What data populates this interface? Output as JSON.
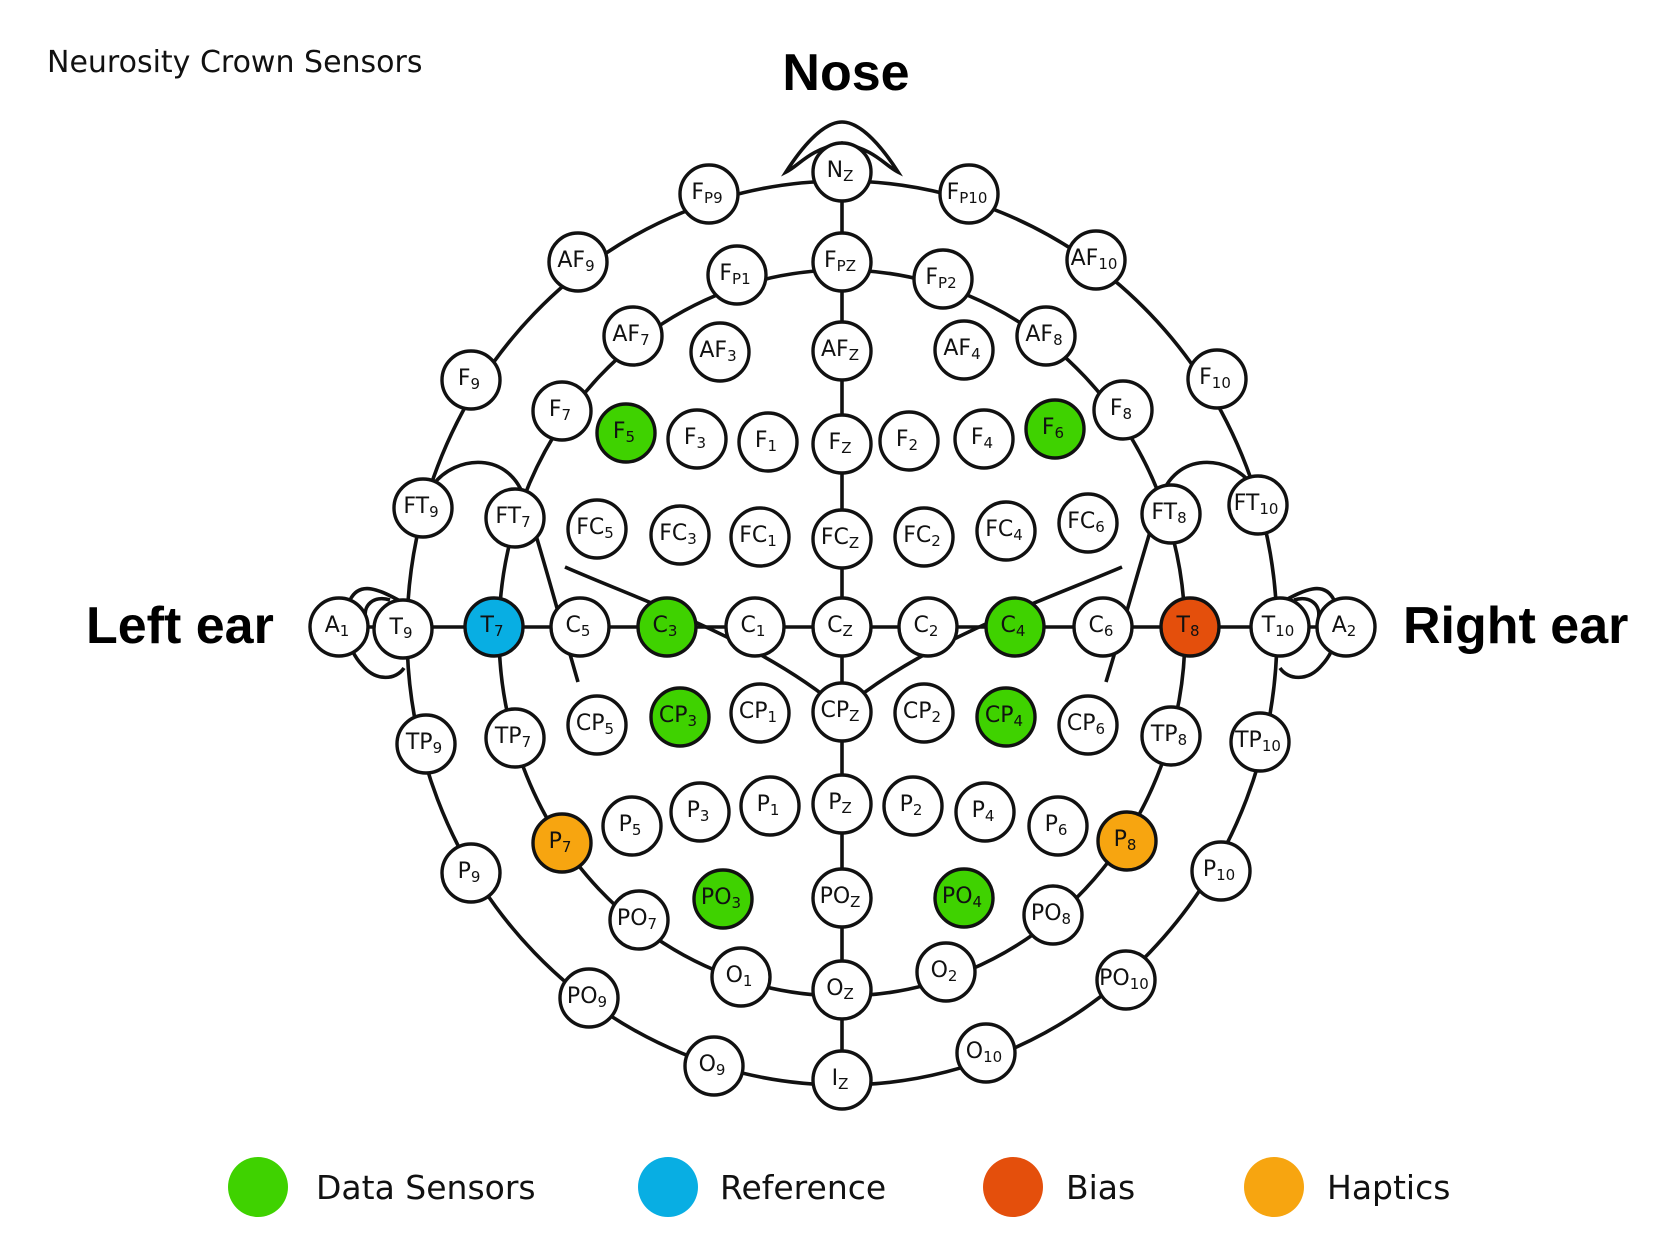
{
  "title": "Neurosity Crown Sensors",
  "orientation": {
    "top": "Nose",
    "left": "Left ear",
    "right": "Right ear"
  },
  "legend": [
    {
      "key": "data",
      "label": "Data Sensors",
      "color": "#3fd200"
    },
    {
      "key": "reference",
      "label": "Reference",
      "color": "#08aee3"
    },
    {
      "key": "bias",
      "label": "Bias",
      "color": "#e44f0c"
    },
    {
      "key": "haptics",
      "label": "Haptics",
      "color": "#f7a510"
    }
  ],
  "colors": {
    "default_fill": "#ffffff",
    "stroke": "#111111"
  },
  "electrodes": [
    {
      "name": "NZ",
      "base": "N",
      "sub": "Z",
      "role": "none"
    },
    {
      "name": "FP9",
      "base": "F",
      "sub": "P9",
      "role": "none"
    },
    {
      "name": "FP10",
      "base": "F",
      "sub": "P10",
      "role": "none"
    },
    {
      "name": "AF9",
      "base": "AF",
      "sub": "9",
      "role": "none"
    },
    {
      "name": "AF10",
      "base": "AF",
      "sub": "10",
      "role": "none"
    },
    {
      "name": "FP1",
      "base": "F",
      "sub": "P1",
      "role": "none"
    },
    {
      "name": "FPZ",
      "base": "F",
      "sub": "PZ",
      "role": "none"
    },
    {
      "name": "FP2",
      "base": "F",
      "sub": "P2",
      "role": "none"
    },
    {
      "name": "AF7",
      "base": "AF",
      "sub": "7",
      "role": "none"
    },
    {
      "name": "AF3",
      "base": "AF",
      "sub": "3",
      "role": "none"
    },
    {
      "name": "AFZ",
      "base": "AF",
      "sub": "Z",
      "role": "none"
    },
    {
      "name": "AF4",
      "base": "AF",
      "sub": "4",
      "role": "none"
    },
    {
      "name": "AF8",
      "base": "AF",
      "sub": "8",
      "role": "none"
    },
    {
      "name": "F9",
      "base": "F",
      "sub": "9",
      "role": "none"
    },
    {
      "name": "F10",
      "base": "F",
      "sub": "10",
      "role": "none"
    },
    {
      "name": "F7",
      "base": "F",
      "sub": "7",
      "role": "none"
    },
    {
      "name": "F5",
      "base": "F",
      "sub": "5",
      "role": "data"
    },
    {
      "name": "F3",
      "base": "F",
      "sub": "3",
      "role": "none"
    },
    {
      "name": "F1",
      "base": "F",
      "sub": "1",
      "role": "none"
    },
    {
      "name": "FZ",
      "base": "F",
      "sub": "Z",
      "role": "none"
    },
    {
      "name": "F2",
      "base": "F",
      "sub": "2",
      "role": "none"
    },
    {
      "name": "F4",
      "base": "F",
      "sub": "4",
      "role": "none"
    },
    {
      "name": "F6",
      "base": "F",
      "sub": "6",
      "role": "data"
    },
    {
      "name": "F8",
      "base": "F",
      "sub": "8",
      "role": "none"
    },
    {
      "name": "FT9",
      "base": "FT",
      "sub": "9",
      "role": "none"
    },
    {
      "name": "FT7",
      "base": "FT",
      "sub": "7",
      "role": "none"
    },
    {
      "name": "FC5",
      "base": "FC",
      "sub": "5",
      "role": "none"
    },
    {
      "name": "FC3",
      "base": "FC",
      "sub": "3",
      "role": "none"
    },
    {
      "name": "FC1",
      "base": "FC",
      "sub": "1",
      "role": "none"
    },
    {
      "name": "FCZ",
      "base": "FC",
      "sub": "Z",
      "role": "none"
    },
    {
      "name": "FC2",
      "base": "FC",
      "sub": "2",
      "role": "none"
    },
    {
      "name": "FC4",
      "base": "FC",
      "sub": "4",
      "role": "none"
    },
    {
      "name": "FC6",
      "base": "FC",
      "sub": "6",
      "role": "none"
    },
    {
      "name": "FT8",
      "base": "FT",
      "sub": "8",
      "role": "none"
    },
    {
      "name": "FT10",
      "base": "FT",
      "sub": "10",
      "role": "none"
    },
    {
      "name": "A1",
      "base": "A",
      "sub": "1",
      "role": "none"
    },
    {
      "name": "T9",
      "base": "T",
      "sub": "9",
      "role": "none"
    },
    {
      "name": "T7",
      "base": "T",
      "sub": "7",
      "role": "reference"
    },
    {
      "name": "C5",
      "base": "C",
      "sub": "5",
      "role": "none"
    },
    {
      "name": "C3",
      "base": "C",
      "sub": "3",
      "role": "data"
    },
    {
      "name": "C1",
      "base": "C",
      "sub": "1",
      "role": "none"
    },
    {
      "name": "CZ",
      "base": "C",
      "sub": "Z",
      "role": "none"
    },
    {
      "name": "C2",
      "base": "C",
      "sub": "2",
      "role": "none"
    },
    {
      "name": "C4",
      "base": "C",
      "sub": "4",
      "role": "data"
    },
    {
      "name": "C6",
      "base": "C",
      "sub": "6",
      "role": "none"
    },
    {
      "name": "T8",
      "base": "T",
      "sub": "8",
      "role": "bias"
    },
    {
      "name": "T10",
      "base": "T",
      "sub": "10",
      "role": "none"
    },
    {
      "name": "A2",
      "base": "A",
      "sub": "2",
      "role": "none"
    },
    {
      "name": "TP9",
      "base": "TP",
      "sub": "9",
      "role": "none"
    },
    {
      "name": "TP7",
      "base": "TP",
      "sub": "7",
      "role": "none"
    },
    {
      "name": "CP5",
      "base": "CP",
      "sub": "5",
      "role": "none"
    },
    {
      "name": "CP3",
      "base": "CP",
      "sub": "3",
      "role": "data"
    },
    {
      "name": "CP1",
      "base": "CP",
      "sub": "1",
      "role": "none"
    },
    {
      "name": "CPZ",
      "base": "CP",
      "sub": "Z",
      "role": "none"
    },
    {
      "name": "CP2",
      "base": "CP",
      "sub": "2",
      "role": "none"
    },
    {
      "name": "CP4",
      "base": "CP",
      "sub": "4",
      "role": "data"
    },
    {
      "name": "CP6",
      "base": "CP",
      "sub": "6",
      "role": "none"
    },
    {
      "name": "TP8",
      "base": "TP",
      "sub": "8",
      "role": "none"
    },
    {
      "name": "TP10",
      "base": "TP",
      "sub": "10",
      "role": "none"
    },
    {
      "name": "P7",
      "base": "P",
      "sub": "7",
      "role": "haptics"
    },
    {
      "name": "P5",
      "base": "P",
      "sub": "5",
      "role": "none"
    },
    {
      "name": "P3",
      "base": "P",
      "sub": "3",
      "role": "none"
    },
    {
      "name": "P1",
      "base": "P",
      "sub": "1",
      "role": "none"
    },
    {
      "name": "PZ",
      "base": "P",
      "sub": "Z",
      "role": "none"
    },
    {
      "name": "P2",
      "base": "P",
      "sub": "2",
      "role": "none"
    },
    {
      "name": "P4",
      "base": "P",
      "sub": "4",
      "role": "none"
    },
    {
      "name": "P6",
      "base": "P",
      "sub": "6",
      "role": "none"
    },
    {
      "name": "P8",
      "base": "P",
      "sub": "8",
      "role": "haptics"
    },
    {
      "name": "P9",
      "base": "P",
      "sub": "9",
      "role": "none"
    },
    {
      "name": "P10",
      "base": "P",
      "sub": "10",
      "role": "none"
    },
    {
      "name": "PO7",
      "base": "PO",
      "sub": "7",
      "role": "none"
    },
    {
      "name": "PO3",
      "base": "PO",
      "sub": "3",
      "role": "data"
    },
    {
      "name": "POZ",
      "base": "PO",
      "sub": "Z",
      "role": "none"
    },
    {
      "name": "PO4",
      "base": "PO",
      "sub": "4",
      "role": "data"
    },
    {
      "name": "PO8",
      "base": "PO",
      "sub": "8",
      "role": "none"
    },
    {
      "name": "O1",
      "base": "O",
      "sub": "1",
      "role": "none"
    },
    {
      "name": "OZ",
      "base": "O",
      "sub": "Z",
      "role": "none"
    },
    {
      "name": "O2",
      "base": "O",
      "sub": "2",
      "role": "none"
    },
    {
      "name": "PO9",
      "base": "PO",
      "sub": "9",
      "role": "none"
    },
    {
      "name": "PO10",
      "base": "PO",
      "sub": "10",
      "role": "none"
    },
    {
      "name": "O9",
      "base": "O",
      "sub": "9",
      "role": "none"
    },
    {
      "name": "O10",
      "base": "O",
      "sub": "10",
      "role": "none"
    },
    {
      "name": "IZ",
      "base": "I",
      "sub": "Z",
      "role": "none"
    }
  ]
}
